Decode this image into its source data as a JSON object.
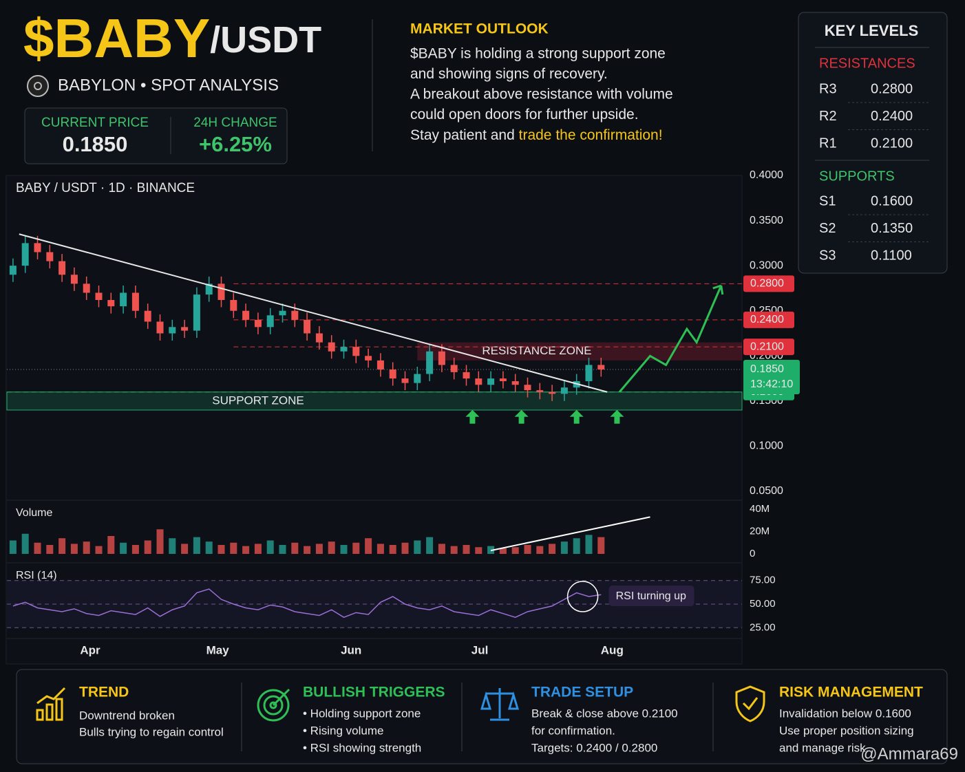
{
  "header": {
    "symbol": "$BABY",
    "pair": "/USDT",
    "subtitle": "BABYLON • SPOT ANALYSIS",
    "current_price_label": "CURRENT PRICE",
    "current_price": "0.1850",
    "change_label": "24H CHANGE",
    "change": "+6.25%"
  },
  "outlook": {
    "title": "MARKET OUTLOOK",
    "lines": [
      "$BABY is holding a strong support zone",
      "and showing signs of recovery.",
      "A breakout above resistance with volume",
      "could open doors for further upside."
    ],
    "last_line": "Stay patient and ",
    "highlight": "trade the confirmation!"
  },
  "key_levels": {
    "title": "KEY LEVELS",
    "resistances_title": "RESISTANCES",
    "resistances": [
      [
        "R3",
        "0.2800"
      ],
      [
        "R2",
        "0.2400"
      ],
      [
        "R1",
        "0.2100"
      ]
    ],
    "supports_title": "SUPPORTS",
    "supports": [
      [
        "S1",
        "0.1600"
      ],
      [
        "S2",
        "0.1350"
      ],
      [
        "S3",
        "0.1100"
      ]
    ]
  },
  "chart_data": [
    {
      "type": "candlestick",
      "title": "BABY / USDT · 1D · BINANCE",
      "open": [
        0.29,
        0.3,
        0.325,
        0.315,
        0.305,
        0.29,
        0.28,
        0.27,
        0.262,
        0.255,
        0.27,
        0.25,
        0.238,
        0.225,
        0.232,
        0.228,
        0.268,
        0.28,
        0.262,
        0.25,
        0.24,
        0.232,
        0.245,
        0.25,
        0.24,
        0.225,
        0.215,
        0.205,
        0.21,
        0.2,
        0.195,
        0.185,
        0.175,
        0.17,
        0.18,
        0.205,
        0.19,
        0.182,
        0.175,
        0.168,
        0.175,
        0.172,
        0.168,
        0.162,
        0.16,
        0.158,
        0.165,
        0.172,
        0.19
      ],
      "high": [
        0.308,
        0.333,
        0.333,
        0.323,
        0.313,
        0.298,
        0.288,
        0.278,
        0.27,
        0.278,
        0.278,
        0.258,
        0.246,
        0.24,
        0.24,
        0.276,
        0.288,
        0.288,
        0.27,
        0.258,
        0.248,
        0.253,
        0.258,
        0.258,
        0.248,
        0.233,
        0.223,
        0.218,
        0.218,
        0.208,
        0.203,
        0.193,
        0.183,
        0.188,
        0.213,
        0.213,
        0.198,
        0.19,
        0.183,
        0.183,
        0.183,
        0.18,
        0.176,
        0.17,
        0.168,
        0.173,
        0.18,
        0.198,
        0.198
      ],
      "low": [
        0.282,
        0.292,
        0.307,
        0.297,
        0.282,
        0.272,
        0.262,
        0.254,
        0.247,
        0.247,
        0.242,
        0.23,
        0.217,
        0.217,
        0.22,
        0.22,
        0.26,
        0.254,
        0.242,
        0.232,
        0.224,
        0.224,
        0.237,
        0.232,
        0.217,
        0.207,
        0.197,
        0.197,
        0.192,
        0.187,
        0.177,
        0.167,
        0.162,
        0.162,
        0.172,
        0.182,
        0.174,
        0.167,
        0.16,
        0.16,
        0.164,
        0.16,
        0.154,
        0.152,
        0.15,
        0.15,
        0.157,
        0.164,
        0.177
      ],
      "close": [
        0.3,
        0.325,
        0.315,
        0.305,
        0.29,
        0.28,
        0.27,
        0.262,
        0.255,
        0.27,
        0.25,
        0.238,
        0.225,
        0.232,
        0.228,
        0.268,
        0.28,
        0.262,
        0.25,
        0.24,
        0.232,
        0.245,
        0.25,
        0.24,
        0.225,
        0.215,
        0.205,
        0.21,
        0.2,
        0.195,
        0.185,
        0.175,
        0.17,
        0.18,
        0.205,
        0.19,
        0.182,
        0.175,
        0.168,
        0.175,
        0.172,
        0.168,
        0.162,
        0.16,
        0.158,
        0.165,
        0.172,
        0.19,
        0.185
      ],
      "up_color": "#26a69a",
      "down_color": "#ef5350",
      "ylim": [
        0.05,
        0.4
      ],
      "yticks": [
        {
          "value": 0.4,
          "label": "0.4000"
        },
        {
          "value": 0.35,
          "label": "0.3500"
        },
        {
          "value": 0.3,
          "label": "0.3000"
        },
        {
          "value": 0.25,
          "label": "0.2500"
        },
        {
          "value": 0.2,
          "label": "0.2000"
        },
        {
          "value": 0.15,
          "label": "0.1500"
        },
        {
          "value": 0.1,
          "label": "0.1000"
        },
        {
          "value": 0.05,
          "label": "0.0500"
        }
      ],
      "xlim": [
        0,
        60
      ],
      "xticks": [
        {
          "value": 6.8,
          "label": "Apr"
        },
        {
          "value": 17.2,
          "label": "May"
        },
        {
          "value": 28.1,
          "label": "Jun"
        },
        {
          "value": 38.6,
          "label": "Jul"
        },
        {
          "value": 49.4,
          "label": "Aug"
        }
      ],
      "levels": [
        {
          "value": 0.28,
          "label": "0.2800",
          "color": "#e0323c"
        },
        {
          "value": 0.24,
          "label": "0.2400",
          "color": "#e0323c"
        },
        {
          "value": 0.21,
          "label": "0.2100",
          "color": "#e0323c"
        },
        {
          "value": 0.16,
          "label": "0.1600",
          "color": "#1fae6a"
        }
      ],
      "current": {
        "value": 0.185,
        "label": "0.1850",
        "time": "13:42:10",
        "color": "#1fae6a"
      },
      "resistance_zone": {
        "label": "RESISTANCE ZONE",
        "range": [
          0.195,
          0.215
        ]
      },
      "support_zone": {
        "label": "SUPPORT ZONE",
        "range": [
          0.14,
          0.16
        ]
      },
      "trendline": {
        "x": [
          1,
          49
        ],
        "y": [
          0.335,
          0.16
        ]
      },
      "projection": {
        "x": [
          50,
          52.5,
          53.8,
          55.5,
          56.3,
          58.3
        ],
        "y": [
          0.16,
          0.2,
          0.19,
          0.23,
          0.215,
          0.278
        ],
        "color": "#2fbf57"
      },
      "support_touches": [
        38,
        42,
        46.5,
        49.8
      ]
    },
    {
      "type": "bar",
      "series": [
        {
          "name": "Volume",
          "values": [
            12,
            18,
            10,
            8,
            14,
            9,
            11,
            7,
            16,
            10,
            8,
            12,
            22,
            14,
            9,
            15,
            11,
            8,
            10,
            7,
            9,
            12,
            8,
            10,
            7,
            9,
            11,
            8,
            10,
            14,
            9,
            8,
            10,
            12,
            15,
            9,
            7,
            8,
            6,
            7,
            5,
            6,
            8,
            7,
            9,
            11,
            14,
            17,
            15
          ]
        }
      ],
      "ylim": [
        0,
        40
      ],
      "yticks": [
        {
          "value": 40,
          "label": "40M"
        },
        {
          "value": 20,
          "label": "20M"
        },
        0
      ],
      "trend": {
        "x": [
          39.5,
          52.5
        ],
        "y": [
          3,
          33
        ]
      }
    },
    {
      "type": "line",
      "series": [
        {
          "name": "RSI (14)",
          "color": "#9c6fd6",
          "values": [
            48,
            52,
            46,
            44,
            42,
            45,
            40,
            38,
            43,
            41,
            39,
            46,
            37,
            44,
            48,
            62,
            66,
            55,
            50,
            46,
            44,
            49,
            47,
            42,
            40,
            38,
            44,
            36,
            41,
            39,
            52,
            58,
            50,
            46,
            44,
            48,
            42,
            40,
            38,
            44,
            40,
            36,
            42,
            45,
            48,
            55,
            62,
            58,
            60
          ]
        }
      ],
      "ylim": [
        15,
        85
      ],
      "yticks": [
        {
          "value": 75,
          "label": "75.00"
        },
        {
          "value": 50,
          "label": "50.00"
        },
        {
          "value": 25,
          "label": "25.00"
        }
      ],
      "annotation": {
        "text": "RSI turning up",
        "x": 47,
        "y": 58
      }
    }
  ],
  "footer": [
    {
      "title": "TREND",
      "lines": [
        "Downtrend broken",
        "Bulls trying to regain control"
      ]
    },
    {
      "title": "BULLISH TRIGGERS",
      "lines": [
        "• Holding support zone",
        "• Rising volume",
        "• RSI showing strength"
      ]
    },
    {
      "title": "TRADE SETUP",
      "lines": [
        "Break & close above 0.2100",
        "for confirmation.",
        "Targets: 0.2400 / 0.2800"
      ]
    },
    {
      "title": "RISK MANAGEMENT",
      "lines": [
        "Invalidation below 0.1600",
        "Use proper position sizing",
        "and manage risk."
      ]
    }
  ],
  "watermark": "@Ammara69"
}
